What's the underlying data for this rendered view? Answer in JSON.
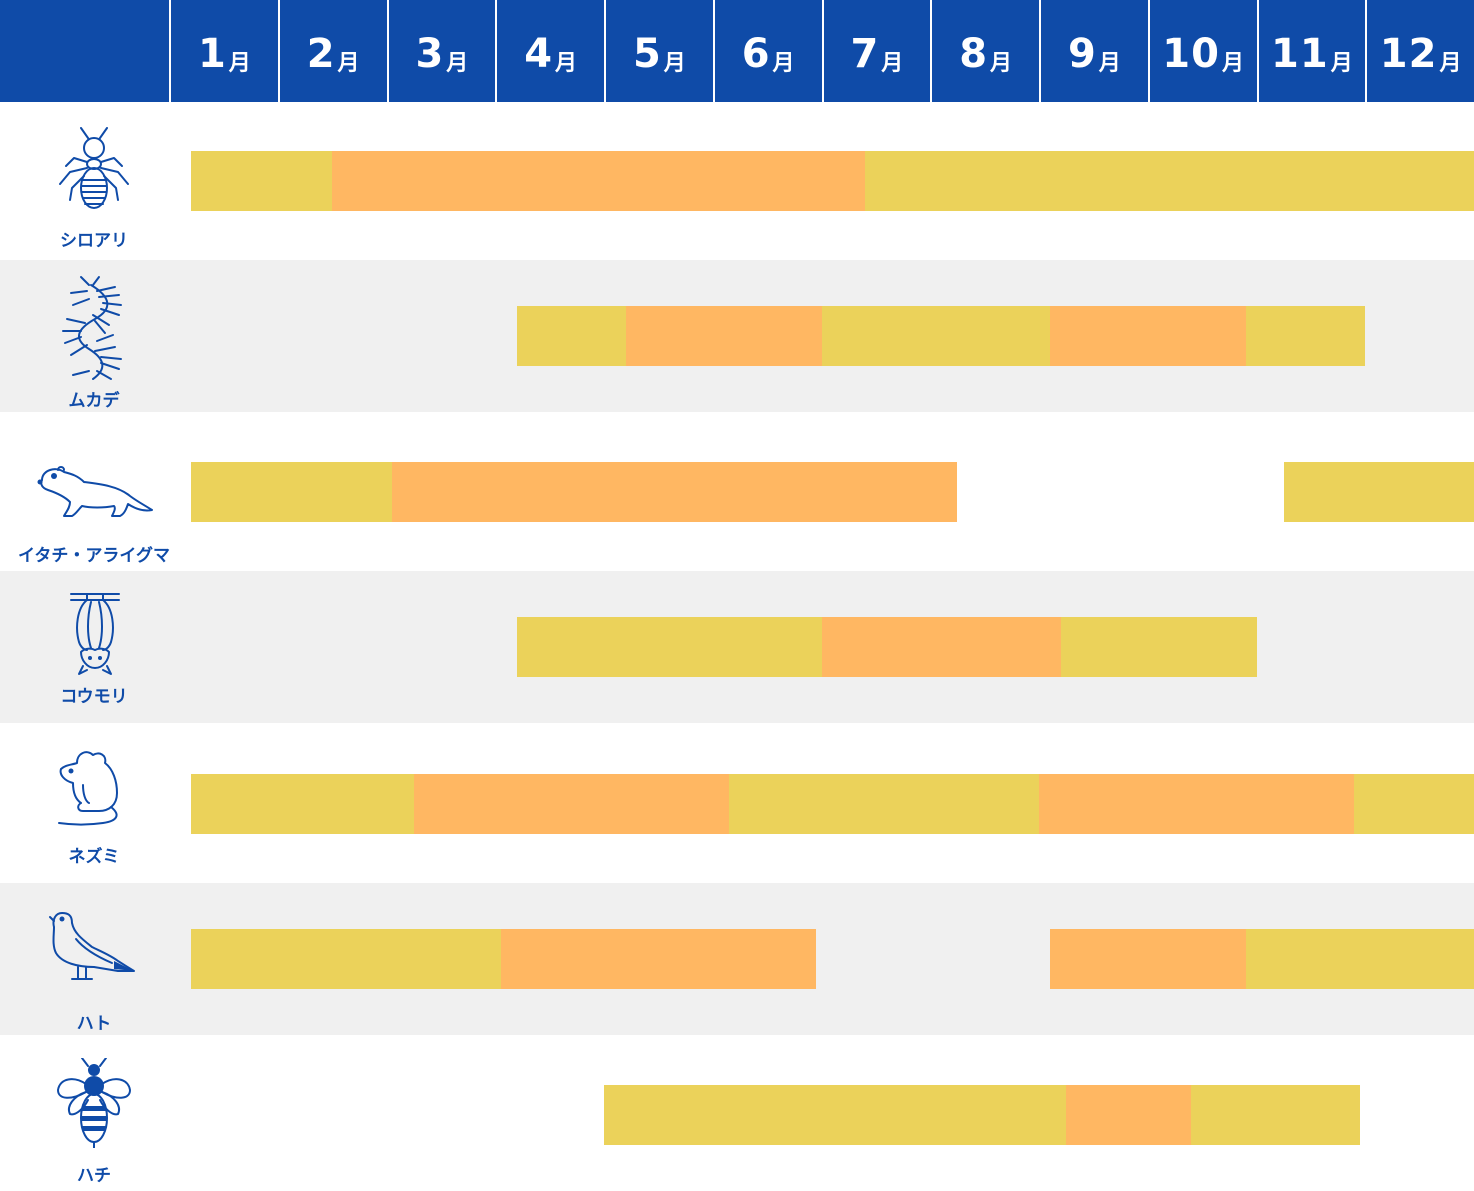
{
  "colors": {
    "header_bg": "#0f4ba8",
    "header_text": "#ffffff",
    "label": "#0f4ba8",
    "row_alt": "#f0f0f0",
    "row_plain": "#ffffff",
    "active": "#ebd25a",
    "peak": "#ffb762"
  },
  "months": [
    {
      "num": "1",
      "unit": "月"
    },
    {
      "num": "2",
      "unit": "月"
    },
    {
      "num": "3",
      "unit": "月"
    },
    {
      "num": "4",
      "unit": "月"
    },
    {
      "num": "5",
      "unit": "月"
    },
    {
      "num": "6",
      "unit": "月"
    },
    {
      "num": "7",
      "unit": "月"
    },
    {
      "num": "8",
      "unit": "月"
    },
    {
      "num": "9",
      "unit": "月"
    },
    {
      "num": "10",
      "unit": "月"
    },
    {
      "num": "11",
      "unit": "月"
    },
    {
      "num": "12",
      "unit": "月"
    }
  ],
  "chart_data": {
    "type": "gantt",
    "x_unit": "month",
    "xlim": [
      1,
      13
    ],
    "legend": [],
    "categories": [
      "シロアリ",
      "ムカデ",
      "イタチ・アライグマ",
      "コウモリ",
      "ネズミ",
      "ハト",
      "ハチ"
    ],
    "series": [
      {
        "label": "シロアリ",
        "icon": "termite-icon",
        "segments": [
          {
            "start": 1.2,
            "end": 2.5,
            "level": "active"
          },
          {
            "start": 2.5,
            "end": 7.4,
            "level": "peak"
          },
          {
            "start": 7.4,
            "end": 13.0,
            "level": "active"
          }
        ]
      },
      {
        "label": "ムカデ",
        "icon": "centipede-icon",
        "segments": [
          {
            "start": 4.2,
            "end": 5.2,
            "level": "active"
          },
          {
            "start": 5.2,
            "end": 7.0,
            "level": "peak"
          },
          {
            "start": 7.0,
            "end": 9.1,
            "level": "active"
          },
          {
            "start": 9.1,
            "end": 10.9,
            "level": "peak"
          },
          {
            "start": 10.9,
            "end": 12.0,
            "level": "active"
          }
        ]
      },
      {
        "label": "イタチ・アライグマ",
        "icon": "weasel-icon",
        "segments": [
          {
            "start": 1.2,
            "end": 3.05,
            "level": "active"
          },
          {
            "start": 3.05,
            "end": 8.25,
            "level": "peak"
          },
          {
            "start": 11.25,
            "end": 13.0,
            "level": "active"
          }
        ]
      },
      {
        "label": "コウモリ",
        "icon": "bat-icon",
        "segments": [
          {
            "start": 4.2,
            "end": 7.0,
            "level": "active"
          },
          {
            "start": 7.0,
            "end": 9.2,
            "level": "peak"
          },
          {
            "start": 9.2,
            "end": 11.0,
            "level": "active"
          }
        ]
      },
      {
        "label": "ネズミ",
        "icon": "mouse-icon",
        "segments": [
          {
            "start": 1.2,
            "end": 3.25,
            "level": "active"
          },
          {
            "start": 3.25,
            "end": 6.15,
            "level": "peak"
          },
          {
            "start": 6.15,
            "end": 9.0,
            "level": "active"
          },
          {
            "start": 9.0,
            "end": 11.9,
            "level": "peak"
          },
          {
            "start": 11.9,
            "end": 13.0,
            "level": "active"
          }
        ]
      },
      {
        "label": "ハト",
        "icon": "pigeon-icon",
        "segments": [
          {
            "start": 1.2,
            "end": 4.05,
            "level": "active"
          },
          {
            "start": 4.05,
            "end": 6.95,
            "level": "peak"
          },
          {
            "start": 9.1,
            "end": 10.9,
            "level": "peak"
          },
          {
            "start": 10.9,
            "end": 13.0,
            "level": "active"
          }
        ]
      },
      {
        "label": "ハチ",
        "icon": "bee-icon",
        "segments": [
          {
            "start": 5.0,
            "end": 9.25,
            "level": "active"
          },
          {
            "start": 9.25,
            "end": 10.4,
            "level": "peak"
          },
          {
            "start": 10.4,
            "end": 11.95,
            "level": "active"
          }
        ]
      }
    ]
  }
}
